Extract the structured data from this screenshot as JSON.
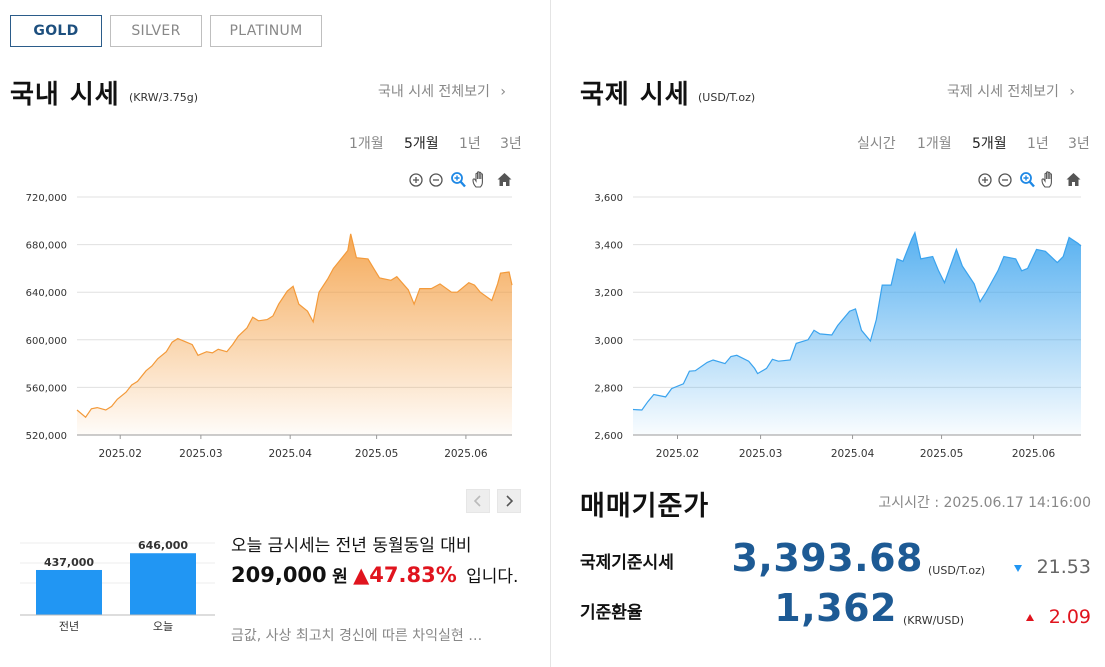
{
  "metal_tabs": [
    {
      "label": "GOLD",
      "active": true
    },
    {
      "label": "SILVER",
      "active": false
    },
    {
      "label": "PLATINUM",
      "active": false
    }
  ],
  "domestic": {
    "title": "국내 시세",
    "unit": "(KRW/3.75g)",
    "view_all": "국내 시세 전체보기",
    "periods": [
      "1개월",
      "5개월",
      "1년",
      "3년"
    ],
    "active_period": "5개월",
    "chart_data": {
      "type": "area",
      "color": "#f39a3a",
      "x_ticks": [
        "2025.02",
        "2025.03",
        "2025.04",
        "2025.05",
        "2025.06"
      ],
      "y_ticks": [
        "720,000",
        "680,000",
        "640,000",
        "600,000",
        "560,000",
        "520,000"
      ],
      "ylim": [
        520000,
        720000
      ],
      "grid": true,
      "points": [
        [
          "2025.01.17",
          541000
        ],
        [
          "2025.01.20",
          535000
        ],
        [
          "2025.01.22",
          542000
        ],
        [
          "2025.01.24",
          543000
        ],
        [
          "2025.01.27",
          541000
        ],
        [
          "2025.01.29",
          544000
        ],
        [
          "2025.01.31",
          550000
        ],
        [
          "2025.02.03",
          556000
        ],
        [
          "2025.02.05",
          562000
        ],
        [
          "2025.02.07",
          565000
        ],
        [
          "2025.02.10",
          574000
        ],
        [
          "2025.02.12",
          578000
        ],
        [
          "2025.02.14",
          584000
        ],
        [
          "2025.02.17",
          590000
        ],
        [
          "2025.02.19",
          598000
        ],
        [
          "2025.02.21",
          601000
        ],
        [
          "2025.02.24",
          598000
        ],
        [
          "2025.02.26",
          596000
        ],
        [
          "2025.02.28",
          587000
        ],
        [
          "2025.03.03",
          590000
        ],
        [
          "2025.03.05",
          589000
        ],
        [
          "2025.03.07",
          592000
        ],
        [
          "2025.03.10",
          590000
        ],
        [
          "2025.03.12",
          596000
        ],
        [
          "2025.03.14",
          603000
        ],
        [
          "2025.03.17",
          610000
        ],
        [
          "2025.03.19",
          619000
        ],
        [
          "2025.03.21",
          616000
        ],
        [
          "2025.03.24",
          617000
        ],
        [
          "2025.03.26",
          620000
        ],
        [
          "2025.03.28",
          630000
        ],
        [
          "2025.03.31",
          641000
        ],
        [
          "2025.04.02",
          645000
        ],
        [
          "2025.04.04",
          630000
        ],
        [
          "2025.04.07",
          624000
        ],
        [
          "2025.04.09",
          615000
        ],
        [
          "2025.04.11",
          640000
        ],
        [
          "2025.04.14",
          651000
        ],
        [
          "2025.04.16",
          660000
        ],
        [
          "2025.04.18",
          666000
        ],
        [
          "2025.04.21",
          675000
        ],
        [
          "2025.04.22",
          689000
        ],
        [
          "2025.04.24",
          669000
        ],
        [
          "2025.04.28",
          668000
        ],
        [
          "2025.04.30",
          660000
        ],
        [
          "2025.05.02",
          652000
        ],
        [
          "2025.05.06",
          650000
        ],
        [
          "2025.05.08",
          653000
        ],
        [
          "2025.05.12",
          642000
        ],
        [
          "2025.05.14",
          630000
        ],
        [
          "2025.05.16",
          643000
        ],
        [
          "2025.05.20",
          643000
        ],
        [
          "2025.05.23",
          647000
        ],
        [
          "2025.05.27",
          640000
        ],
        [
          "2025.05.29",
          640000
        ],
        [
          "2025.06.02",
          648000
        ],
        [
          "2025.06.04",
          646000
        ],
        [
          "2025.06.06",
          640000
        ],
        [
          "2025.06.10",
          633000
        ],
        [
          "2025.06.12",
          647000
        ],
        [
          "2025.06.13",
          656000
        ],
        [
          "2025.06.16",
          657000
        ],
        [
          "2025.06.17",
          646000
        ]
      ]
    },
    "compare_chart": {
      "type": "bar",
      "categories": [
        "전년",
        "오늘"
      ],
      "values": [
        437000,
        646000
      ],
      "value_labels": [
        "437,000",
        "646,000"
      ],
      "color": "#2196f3"
    },
    "compare_text": {
      "line1": "오늘 금시세는 전년 동월동일 대비",
      "amount": "209,000",
      "won": "원",
      "arrow": "▲",
      "percent": "47.83%",
      "tail": "입니다."
    },
    "news": "금값, 사상 최고치 경신에 따른 차익실현 …"
  },
  "international": {
    "title": "국제 시세",
    "unit": "(USD/T.oz)",
    "view_all": "국제 시세 전체보기",
    "periods": [
      "실시간",
      "1개월",
      "5개월",
      "1년",
      "3년"
    ],
    "active_period": "5개월",
    "chart_data": {
      "type": "area",
      "color": "#3aa3ee",
      "x_ticks": [
        "2025.02",
        "2025.03",
        "2025.04",
        "2025.05",
        "2025.06"
      ],
      "y_ticks": [
        "3,600",
        "3,400",
        "3,200",
        "3,000",
        "2,800",
        "2,600"
      ],
      "ylim": [
        2600,
        3600
      ],
      "grid": true,
      "points": [
        [
          "2025.01.17",
          2707
        ],
        [
          "2025.01.20",
          2705
        ],
        [
          "2025.01.22",
          2740
        ],
        [
          "2025.01.24",
          2770
        ],
        [
          "2025.01.28",
          2760
        ],
        [
          "2025.01.30",
          2795
        ],
        [
          "2025.02.03",
          2815
        ],
        [
          "2025.02.05",
          2868
        ],
        [
          "2025.02.07",
          2870
        ],
        [
          "2025.02.11",
          2905
        ],
        [
          "2025.02.13",
          2915
        ],
        [
          "2025.02.17",
          2900
        ],
        [
          "2025.02.19",
          2930
        ],
        [
          "2025.02.21",
          2935
        ],
        [
          "2025.02.25",
          2910
        ],
        [
          "2025.02.27",
          2880
        ],
        [
          "2025.02.28",
          2858
        ],
        [
          "2025.03.03",
          2880
        ],
        [
          "2025.03.05",
          2918
        ],
        [
          "2025.03.07",
          2910
        ],
        [
          "2025.03.11",
          2915
        ],
        [
          "2025.03.13",
          2985
        ],
        [
          "2025.03.17",
          3000
        ],
        [
          "2025.03.19",
          3040
        ],
        [
          "2025.03.21",
          3025
        ],
        [
          "2025.03.25",
          3020
        ],
        [
          "2025.03.27",
          3060
        ],
        [
          "2025.03.31",
          3120
        ],
        [
          "2025.04.02",
          3130
        ],
        [
          "2025.04.04",
          3040
        ],
        [
          "2025.04.07",
          2995
        ],
        [
          "2025.04.09",
          3085
        ],
        [
          "2025.04.11",
          3230
        ],
        [
          "2025.04.14",
          3230
        ],
        [
          "2025.04.16",
          3340
        ],
        [
          "2025.04.18",
          3330
        ],
        [
          "2025.04.21",
          3425
        ],
        [
          "2025.04.22",
          3450
        ],
        [
          "2025.04.24",
          3340
        ],
        [
          "2025.04.28",
          3350
        ],
        [
          "2025.04.30",
          3290
        ],
        [
          "2025.05.02",
          3240
        ],
        [
          "2025.05.06",
          3380
        ],
        [
          "2025.05.08",
          3310
        ],
        [
          "2025.05.12",
          3235
        ],
        [
          "2025.05.14",
          3160
        ],
        [
          "2025.05.16",
          3200
        ],
        [
          "2025.05.20",
          3290
        ],
        [
          "2025.05.22",
          3350
        ],
        [
          "2025.05.26",
          3340
        ],
        [
          "2025.05.28",
          3290
        ],
        [
          "2025.05.30",
          3300
        ],
        [
          "2025.06.02",
          3380
        ],
        [
          "2025.06.05",
          3372
        ],
        [
          "2025.06.09",
          3325
        ],
        [
          "2025.06.11",
          3350
        ],
        [
          "2025.06.13",
          3430
        ],
        [
          "2025.06.16",
          3405
        ],
        [
          "2025.06.17",
          3394
        ]
      ]
    }
  },
  "standard": {
    "title": "매매기준가",
    "notice": "고시시간 : 2025.06.17 14:16:00",
    "rows": [
      {
        "label": "국제기준시세",
        "value": "3,393.68",
        "unit": "(USD/T.oz)",
        "change": "21.53",
        "direction": "down",
        "color": "#2196f3"
      },
      {
        "label": "기준환율",
        "value": "1,362",
        "unit": "(KRW/USD)",
        "change": "2.09",
        "direction": "up",
        "color": "#e0141e"
      }
    ]
  },
  "colors": {
    "accent": "#1d5a94",
    "up": "#e0141e",
    "down": "#2196f3"
  }
}
